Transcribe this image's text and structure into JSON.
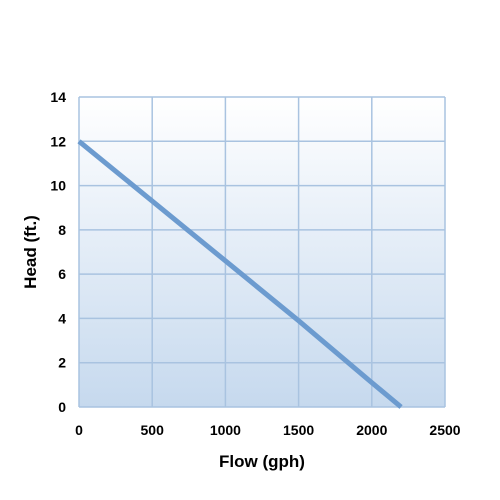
{
  "chart_data": {
    "type": "line",
    "title": "",
    "xlabel": "Flow (gph)",
    "ylabel": "Head (ft.)",
    "xlim": [
      0,
      2500
    ],
    "ylim": [
      0,
      14
    ],
    "x_ticks": [
      0,
      500,
      1000,
      1500,
      2000,
      2500
    ],
    "y_ticks": [
      0,
      2,
      4,
      6,
      8,
      10,
      12,
      14
    ],
    "x_tick_labels": [
      "0",
      "500",
      "1000",
      "1500",
      "2000",
      "2500"
    ],
    "y_tick_labels": [
      "0",
      "2",
      "4",
      "6",
      "8",
      "10",
      "12",
      "14"
    ],
    "grid": true,
    "legend": "none",
    "series": [
      {
        "x": [
          0,
          500,
          1000,
          1500,
          2000,
          2200
        ],
        "y": [
          12,
          9.3,
          6.6,
          3.9,
          1.1,
          0
        ],
        "color": "#6c9bcf"
      }
    ],
    "colors": {
      "background_top": "#ffffff",
      "background_bottom": "#c6d9ee",
      "grid": "#a9c3e0",
      "line": "#6c9bcf"
    }
  }
}
